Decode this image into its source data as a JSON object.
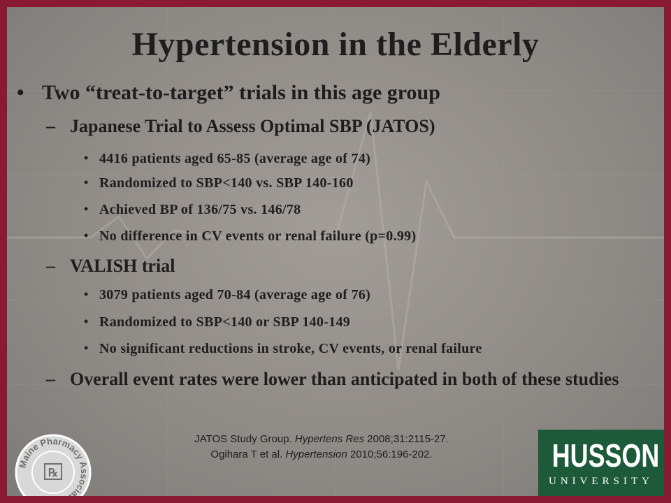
{
  "slide": {
    "title": "Hypertension in the Elderly",
    "main_bullet": "Two “treat-to-target” trials in this age group",
    "sections": [
      {
        "heading": "Japanese Trial to Assess Optimal SBP (JATOS)",
        "points": [
          "4416 patients aged 65-85 (average age of 74)",
          "Randomized to SBP<140 vs. SBP 140-160",
          "Achieved BP of 136/75 vs. 146/78",
          "No difference in CV events or renal failure (p=0.99)"
        ]
      },
      {
        "heading": "VALISH trial",
        "points": [
          "3079 patients aged 70-84 (average age of 76)",
          "Randomized to SBP<140 or SBP 140-149",
          "No significant reductions in stroke, CV events, or renal failure"
        ]
      }
    ],
    "conclusion": "Overall event rates were lower than anticipated in both of these studies",
    "references": {
      "ref1_prefix": "JATOS Study Group. ",
      "ref1_journal": "Hypertens Res",
      "ref1_suffix": " 2008;31:2115-27.",
      "ref2_prefix": "Ogihara T et al. ",
      "ref2_journal": "Hypertension",
      "ref2_suffix": " 2010;56:196-202."
    }
  },
  "logos": {
    "seal_text": "Maine Pharmacy Association",
    "husson_name": "HUSSON",
    "husson_sub": "UNIVERSITY"
  },
  "colors": {
    "frame": "#8a1a34",
    "husson_green": "#1d5a3a"
  }
}
